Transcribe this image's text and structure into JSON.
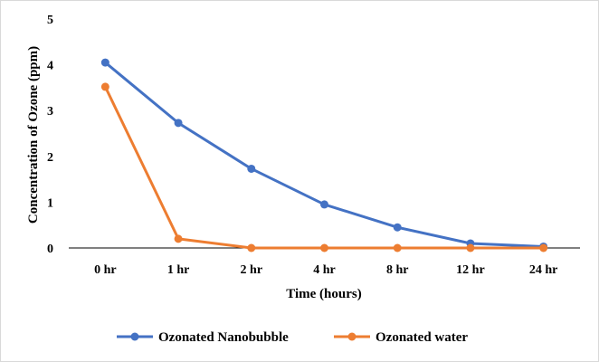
{
  "chart_data": {
    "type": "line",
    "title": "",
    "xlabel": "Time (hours)",
    "ylabel": "Concentration of Ozone (ppm)",
    "categories": [
      "0 hr",
      "1 hr",
      "2 hr",
      "4 hr",
      "8 hr",
      "12 hr",
      "24 hr"
    ],
    "ylim": [
      0,
      5
    ],
    "yticks": [
      "0",
      "1",
      "2",
      "3",
      "4",
      "5"
    ],
    "grid": false,
    "legend_position": "bottom",
    "series": [
      {
        "name": "Ozonated Nanobubble",
        "color": "#4472C4",
        "values": [
          4.05,
          2.73,
          1.73,
          0.95,
          0.45,
          0.1,
          0.03
        ]
      },
      {
        "name": "Ozonated water",
        "color": "#ED7D31",
        "values": [
          3.52,
          0.2,
          0.0,
          0.0,
          0.0,
          0.0,
          0.0
        ]
      }
    ]
  }
}
